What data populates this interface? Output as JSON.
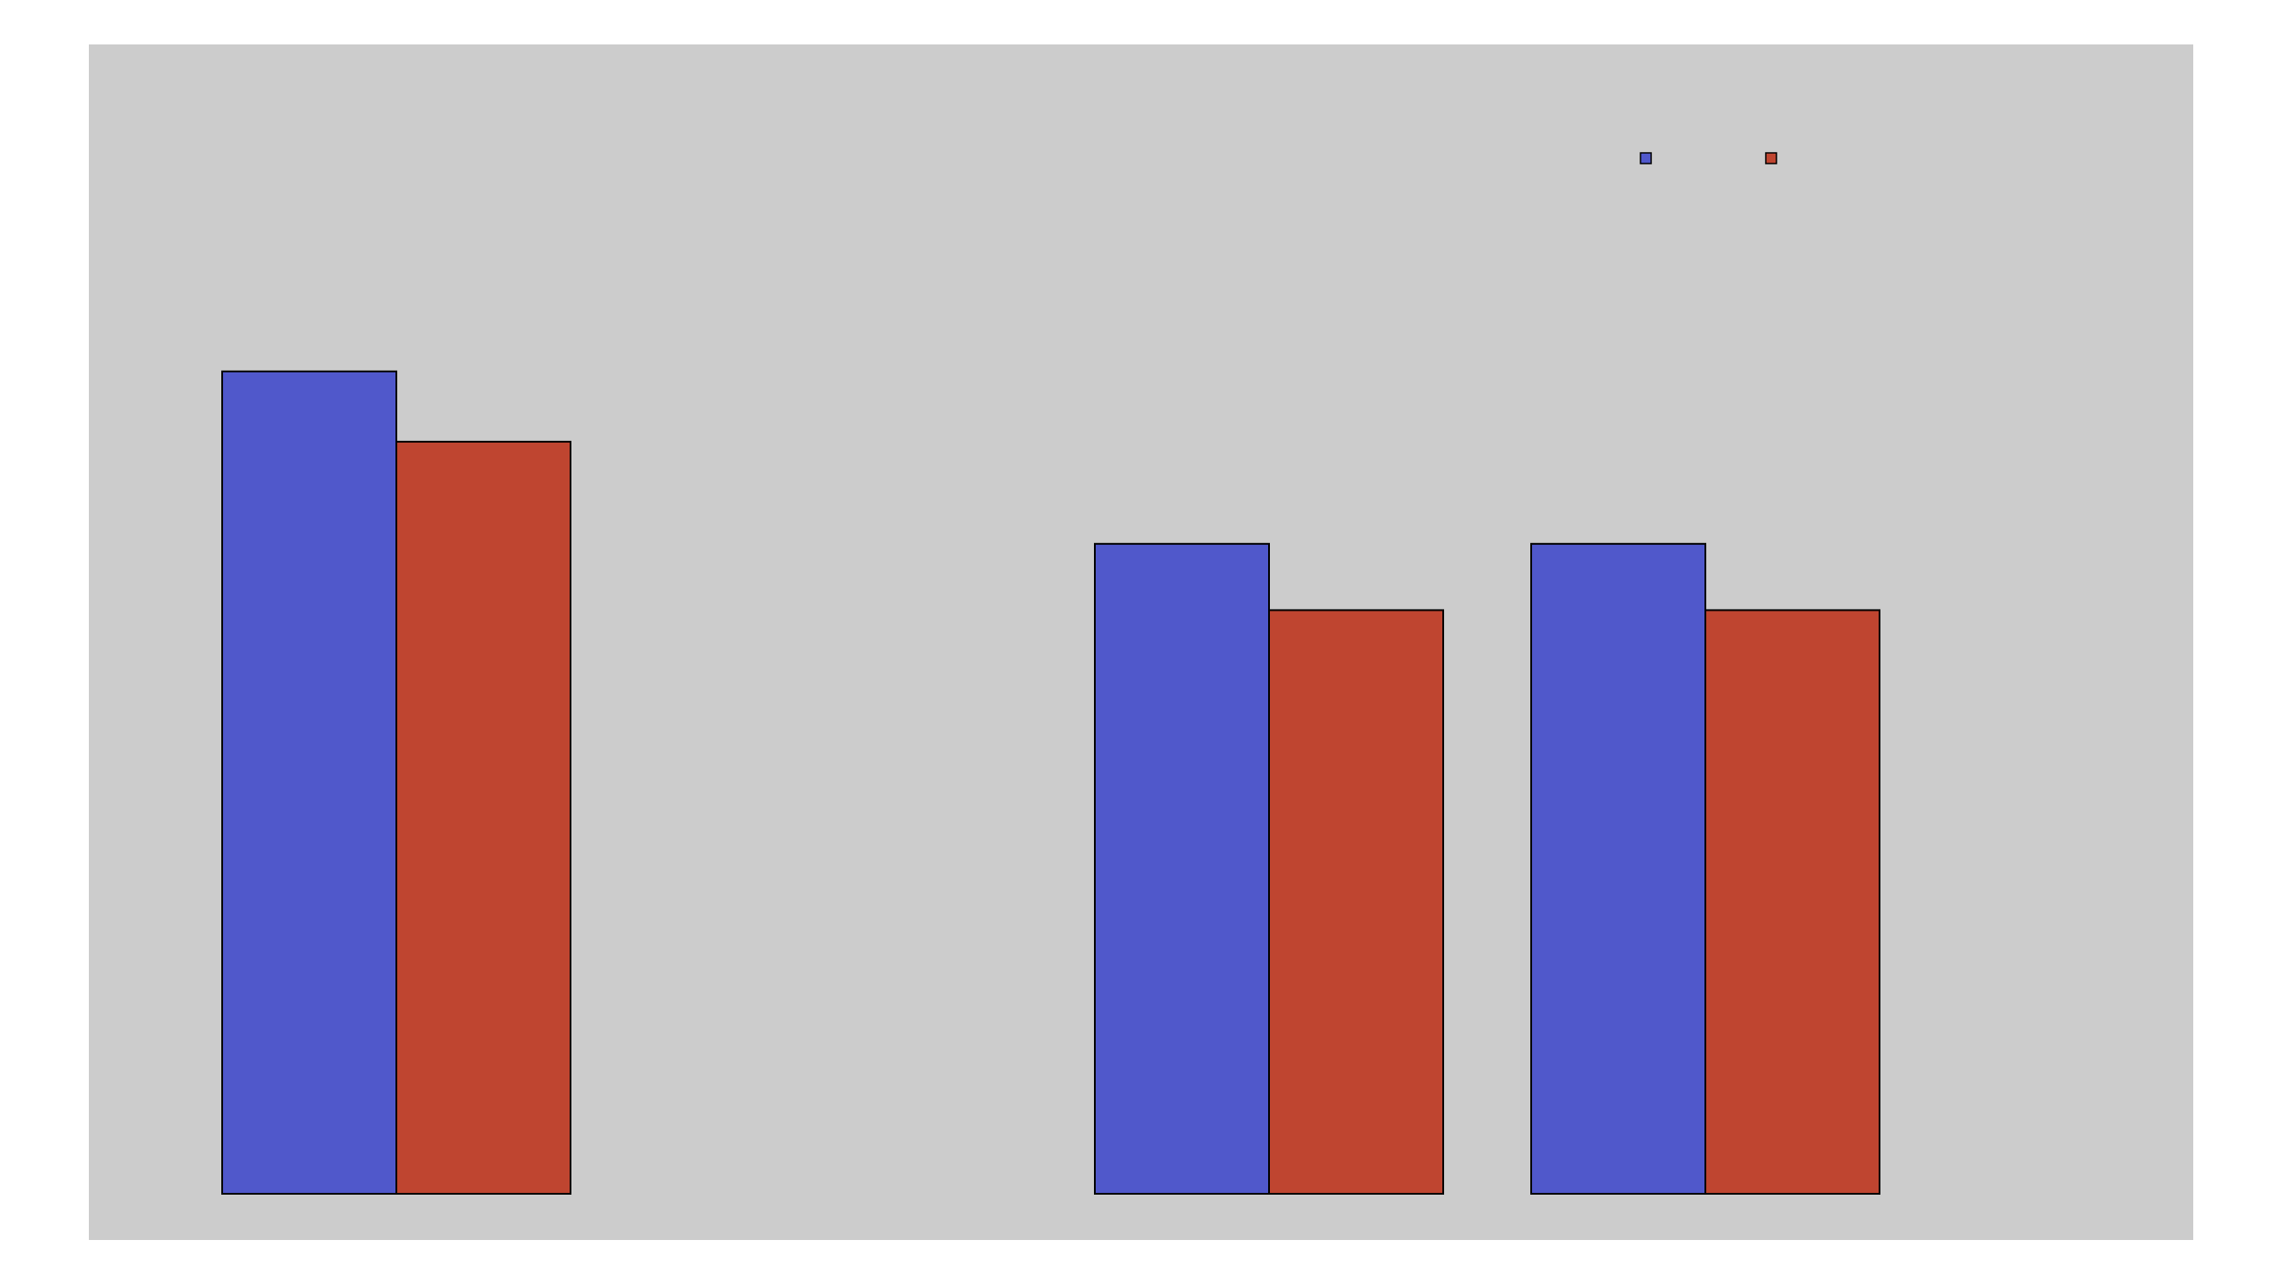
{
  "colors": {
    "page_background": "#ffffff",
    "plot_background": "#cccccc",
    "bar_outline": "#000000"
  },
  "chart_data": {
    "type": "bar",
    "categories": [
      "",
      "",
      "",
      ""
    ],
    "series": [
      {
        "color": "#5058cb",
        "values": [
          6.2,
          0,
          4.9,
          4.9
        ]
      },
      {
        "color": "#bf4530",
        "values": [
          5.67,
          0,
          4.4,
          4.4
        ]
      }
    ],
    "ylim": [
      0,
      9
    ],
    "grid": false,
    "legend_position": "top-right",
    "title": "",
    "xlabel": "",
    "ylabel": ""
  }
}
